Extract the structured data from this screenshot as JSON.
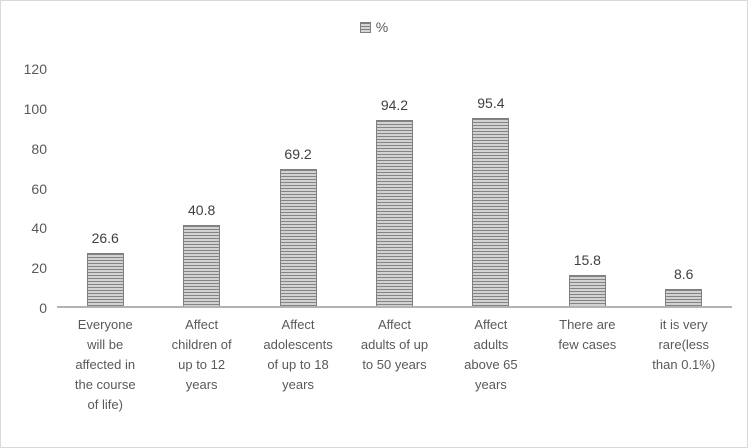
{
  "chart_data": {
    "type": "bar",
    "title": "",
    "legend_label": "%",
    "legend_position": "top-center",
    "categories": [
      "Everyone will be affected in the course of life)",
      "Affect children of up to 12 years",
      "Affect adolescents of up to 18 years",
      "Affect adults of up to 50 years",
      "Affect adults above 65 years",
      "There are few cases",
      "it is very rare(less than 0.1%)"
    ],
    "categories_wrapped": [
      "Everyone\nwill be\naffected in\nthe course\nof life)",
      "Affect\nchildren of\nup to 12\nyears",
      "Affect\nadolescents\nof up to 18\nyears",
      "Affect\nadults of up\nto 50 years",
      "Affect\nadults\nabove 65\nyears",
      "There are\nfew cases",
      "it is very\nrare(less\nthan 0.1%)"
    ],
    "values": [
      26.6,
      40.8,
      69.2,
      94.2,
      95.4,
      15.8,
      8.6
    ],
    "xlabel": "",
    "ylabel": "",
    "ylim": [
      0,
      120
    ],
    "yticks": [
      0,
      20,
      40,
      60,
      80,
      100,
      120
    ],
    "grid": false,
    "colors": {
      "bar_stripe_dark": "#848484",
      "bar_stripe_light": "#d2d2d2",
      "bar_border": "#7f7f7f",
      "axis_line": "#b3b3b3",
      "text": "#595959",
      "value_text": "#404040",
      "frame_border": "#d9d9d9",
      "background": "#ffffff"
    }
  }
}
